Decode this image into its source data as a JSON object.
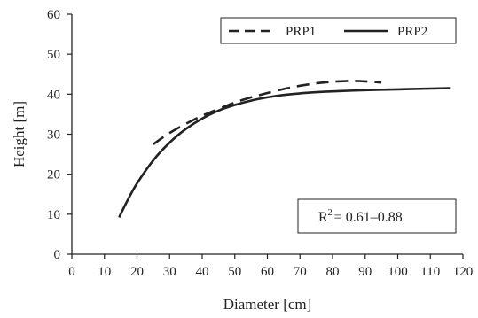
{
  "chart_data": {
    "type": "line",
    "xlabel": "Diameter [cm]",
    "ylabel": "Height [m]",
    "xlim": [
      0,
      120
    ],
    "ylim": [
      0,
      60
    ],
    "xticks": [
      "0",
      "10",
      "20",
      "30",
      "40",
      "50",
      "60",
      "70",
      "80",
      "90",
      "100",
      "110",
      "120"
    ],
    "yticks": [
      "0",
      "10",
      "20",
      "30",
      "40",
      "50",
      "60"
    ],
    "grid": false,
    "legend_position": "top-right",
    "series": [
      {
        "name": "PRP1",
        "style": "dashed",
        "color": "#222222",
        "x": [
          25,
          30,
          35,
          40,
          45,
          50,
          55,
          60,
          65,
          70,
          75,
          80,
          85,
          90,
          95
        ],
        "y": [
          27.5,
          30.3,
          32.6,
          34.6,
          36.3,
          37.9,
          39.2,
          40.3,
          41.3,
          42.1,
          42.7,
          43.1,
          43.3,
          43.2,
          42.9
        ]
      },
      {
        "name": "PRP2",
        "style": "solid",
        "color": "#222222",
        "x": [
          14.5,
          17,
          20,
          25,
          30,
          35,
          40,
          45,
          50,
          55,
          60,
          65,
          70,
          75,
          80,
          90,
          100,
          110,
          116
        ],
        "y": [
          9.2,
          13.3,
          17.7,
          23.5,
          27.9,
          31.3,
          33.9,
          35.9,
          37.3,
          38.4,
          39.2,
          39.8,
          40.2,
          40.5,
          40.7,
          41.0,
          41.2,
          41.4,
          41.5
        ]
      }
    ],
    "annotation": {
      "r2_prefix": "R",
      "r2_superscript": "2",
      "r2_range": "= 0.61–0.88"
    }
  }
}
